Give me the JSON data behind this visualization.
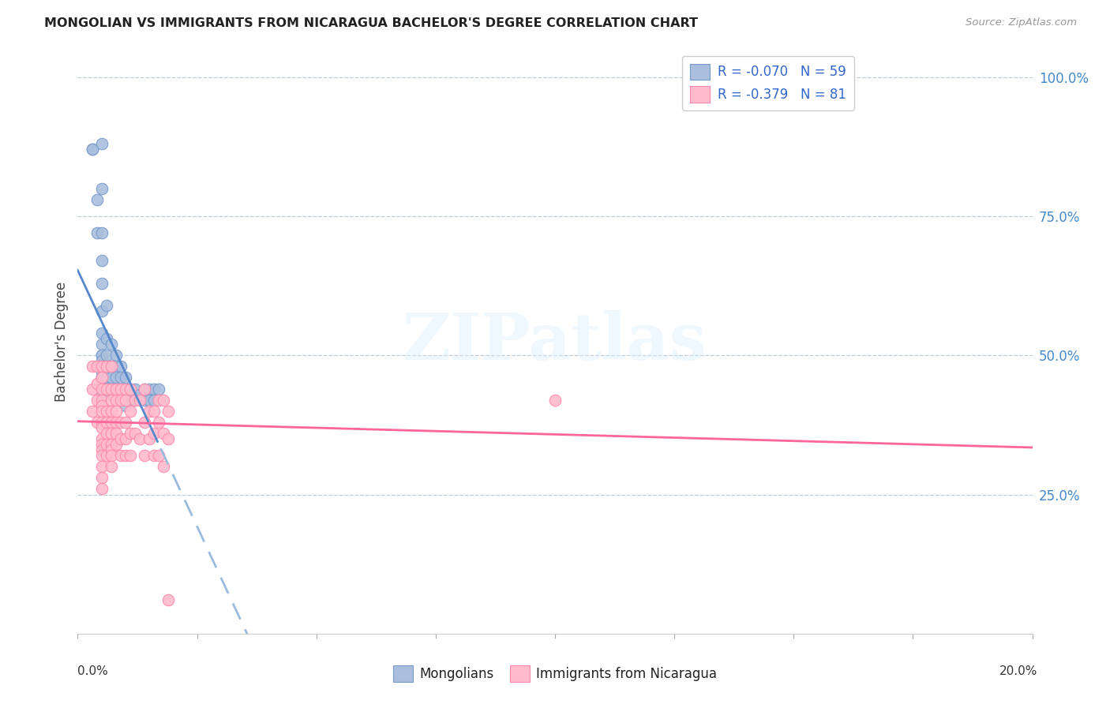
{
  "title": "MONGOLIAN VS IMMIGRANTS FROM NICARAGUA BACHELOR'S DEGREE CORRELATION CHART",
  "source": "Source: ZipAtlas.com",
  "ylabel": "Bachelor's Degree",
  "legend_label1": "R = -0.070   N = 59",
  "legend_label2": "R = -0.379   N = 81",
  "legend_bottom1": "Mongolians",
  "legend_bottom2": "Immigrants from Nicaragua",
  "watermark": "ZIPatlas",
  "xlim": [
    0.0,
    0.2
  ],
  "ylim": [
    0.0,
    1.05
  ],
  "ytick_labels": [
    "25.0%",
    "50.0%",
    "75.0%",
    "100.0%"
  ],
  "ytick_values": [
    0.25,
    0.5,
    0.75,
    1.0
  ],
  "blue_fill": "#AABFDD",
  "blue_edge": "#7799CC",
  "pink_fill": "#FFBBCC",
  "pink_edge": "#FF88AA",
  "blue_line_color": "#5588CC",
  "blue_dash_color": "#99BBDD",
  "pink_line_color": "#FF6699",
  "mongolian_x": [
    0.003,
    0.003,
    0.004,
    0.004,
    0.005,
    0.005,
    0.005,
    0.005,
    0.005,
    0.005,
    0.005,
    0.005,
    0.005,
    0.005,
    0.005,
    0.005,
    0.005,
    0.005,
    0.005,
    0.005,
    0.005,
    0.006,
    0.006,
    0.006,
    0.006,
    0.006,
    0.006,
    0.006,
    0.006,
    0.007,
    0.007,
    0.007,
    0.007,
    0.007,
    0.007,
    0.008,
    0.008,
    0.008,
    0.008,
    0.008,
    0.009,
    0.009,
    0.009,
    0.01,
    0.01,
    0.01,
    0.01,
    0.011,
    0.011,
    0.012,
    0.012,
    0.013,
    0.014,
    0.014,
    0.015,
    0.015,
    0.016,
    0.016,
    0.017
  ],
  "mongolian_y": [
    0.87,
    0.87,
    0.78,
    0.72,
    0.88,
    0.8,
    0.72,
    0.67,
    0.63,
    0.58,
    0.54,
    0.52,
    0.5,
    0.5,
    0.49,
    0.48,
    0.47,
    0.46,
    0.45,
    0.44,
    0.43,
    0.59,
    0.53,
    0.5,
    0.48,
    0.46,
    0.44,
    0.43,
    0.43,
    0.52,
    0.48,
    0.46,
    0.44,
    0.43,
    0.43,
    0.5,
    0.48,
    0.46,
    0.44,
    0.43,
    0.48,
    0.46,
    0.43,
    0.46,
    0.44,
    0.43,
    0.41,
    0.44,
    0.43,
    0.44,
    0.42,
    0.43,
    0.44,
    0.42,
    0.44,
    0.42,
    0.44,
    0.42,
    0.44
  ],
  "nicaragua_x": [
    0.003,
    0.003,
    0.003,
    0.004,
    0.004,
    0.004,
    0.004,
    0.005,
    0.005,
    0.005,
    0.005,
    0.005,
    0.005,
    0.005,
    0.005,
    0.005,
    0.005,
    0.005,
    0.005,
    0.005,
    0.005,
    0.005,
    0.006,
    0.006,
    0.006,
    0.006,
    0.006,
    0.006,
    0.006,
    0.007,
    0.007,
    0.007,
    0.007,
    0.007,
    0.007,
    0.007,
    0.007,
    0.007,
    0.007,
    0.008,
    0.008,
    0.008,
    0.008,
    0.008,
    0.008,
    0.009,
    0.009,
    0.009,
    0.009,
    0.009,
    0.01,
    0.01,
    0.01,
    0.01,
    0.01,
    0.011,
    0.011,
    0.011,
    0.011,
    0.012,
    0.012,
    0.013,
    0.013,
    0.014,
    0.014,
    0.014,
    0.015,
    0.015,
    0.016,
    0.016,
    0.016,
    0.017,
    0.017,
    0.017,
    0.018,
    0.018,
    0.018,
    0.019,
    0.019,
    0.019,
    0.1
  ],
  "nicaragua_y": [
    0.48,
    0.44,
    0.4,
    0.48,
    0.45,
    0.42,
    0.38,
    0.48,
    0.46,
    0.44,
    0.42,
    0.41,
    0.4,
    0.38,
    0.37,
    0.35,
    0.34,
    0.33,
    0.32,
    0.3,
    0.28,
    0.26,
    0.48,
    0.44,
    0.4,
    0.38,
    0.36,
    0.34,
    0.32,
    0.48,
    0.44,
    0.42,
    0.4,
    0.38,
    0.36,
    0.34,
    0.33,
    0.32,
    0.3,
    0.44,
    0.42,
    0.4,
    0.38,
    0.36,
    0.34,
    0.44,
    0.42,
    0.38,
    0.35,
    0.32,
    0.44,
    0.42,
    0.38,
    0.35,
    0.32,
    0.44,
    0.4,
    0.36,
    0.32,
    0.42,
    0.36,
    0.42,
    0.35,
    0.44,
    0.38,
    0.32,
    0.4,
    0.35,
    0.4,
    0.36,
    0.32,
    0.42,
    0.38,
    0.32,
    0.42,
    0.36,
    0.3,
    0.4,
    0.35,
    0.06,
    0.42
  ]
}
